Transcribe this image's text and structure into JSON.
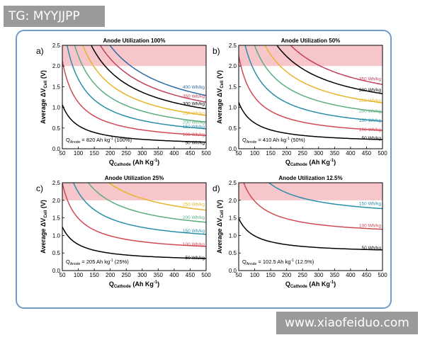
{
  "watermark_top": "TG: MYYJJPP",
  "watermark_bottom": "www.xiaofeiduo.com",
  "colors": {
    "band": "#f7c6cb",
    "50": "#000000",
    "100": "#d04a55",
    "150": "#2a8fa8",
    "200": "#5bae7e",
    "250": "#e7b52a",
    "300": "#000000",
    "350": "#c0415b",
    "400": "#2d6ca3"
  },
  "chart_data": [
    {
      "type": "line",
      "panel_label": "a)",
      "title": "Anode Utilization 100%",
      "xlabel": "Q",
      "xlabel_sub": "Cathode",
      "xlabel_unit": "(Ah Kg",
      "xlabel_sup": "-1",
      "xlabel_end": ")",
      "ylabel": "Average ΔV",
      "ylabel_sub": "Cell",
      "ylabel_unit": "(V)",
      "xlim": [
        50,
        500
      ],
      "ylim": [
        0,
        2.5
      ],
      "xticks": [
        "50",
        "100",
        "150",
        "200",
        "250",
        "300",
        "350",
        "400",
        "450",
        "500"
      ],
      "yticks": [
        "0.0",
        "0.5",
        "1.0",
        "1.5",
        "2.0",
        "2.5"
      ],
      "band": [
        2.0,
        2.5
      ],
      "anode_capacity": 820,
      "annotation": {
        "prefix": "Q",
        "sub": "Anode",
        "text": " = 820 Ah kg",
        "sup": "-1",
        "suffix": " (100%)"
      },
      "series": [
        {
          "name": "50 Wh/kg",
          "energy": 50,
          "label": "50 Wh/kg"
        },
        {
          "name": "100 Wh/kg",
          "energy": 100,
          "label": "100 Wh/kg"
        },
        {
          "name": "150 Wh/kg",
          "energy": 150,
          "label": "150 Wh/kg"
        },
        {
          "name": "200 Wh/kg",
          "energy": 200,
          "label": "200 Wh/kg"
        },
        {
          "name": "250 Wh/kg",
          "energy": 250,
          "label": "250 Wh/kg"
        },
        {
          "name": "300 Wh/kg",
          "energy": 300,
          "label": "300 Wh/kg"
        },
        {
          "name": "350 Wh/kg",
          "energy": 350,
          "label": "350 Wh/kg"
        },
        {
          "name": "400 Wh/kg",
          "energy": 400,
          "label": "400 Wh/kg"
        }
      ]
    },
    {
      "type": "line",
      "panel_label": "b)",
      "title": "Anode Utilization 50%",
      "xlabel": "Q",
      "xlabel_sub": "Cathode",
      "xlabel_unit": "(Ah Kg",
      "xlabel_sup": "-1",
      "xlabel_end": ")",
      "ylabel": "Average ΔV",
      "ylabel_sub": "Cell",
      "ylabel_unit": "(V)",
      "xlim": [
        50,
        500
      ],
      "ylim": [
        0,
        2.5
      ],
      "xticks": [
        "50",
        "100",
        "150",
        "200",
        "250",
        "300",
        "350",
        "400",
        "450",
        "500"
      ],
      "yticks": [
        "0.0",
        "0.5",
        "1.0",
        "1.5",
        "2.0",
        "2.5"
      ],
      "band": [
        2.0,
        2.5
      ],
      "anode_capacity": 410,
      "annotation": {
        "prefix": "Q",
        "sub": "Anode",
        "text": " = 410 Ah kg",
        "sup": "-1",
        "suffix": " (50%)"
      },
      "series": [
        {
          "name": "50 Wh/kg",
          "energy": 50,
          "label": "50 Wh/kg"
        },
        {
          "name": "100 Wh/kg",
          "energy": 100,
          "label": "100 Wh/kg"
        },
        {
          "name": "150 Wh/kg",
          "energy": 150,
          "label": "150 Wh/kg"
        },
        {
          "name": "200 Wh/kg",
          "energy": 200,
          "label": "200 Wh/kg"
        },
        {
          "name": "250 Wh/kg",
          "energy": 250,
          "label": "250 Wh/kg"
        },
        {
          "name": "300 Wh/kg",
          "energy": 300,
          "label": "300 Wh/kg"
        },
        {
          "name": "350 Wh/kg",
          "energy": 350,
          "label": "350 Wh/kg"
        }
      ]
    },
    {
      "type": "line",
      "panel_label": "c)",
      "title": "Anode Utilization 25%",
      "xlabel": "Q",
      "xlabel_sub": "Cathode",
      "xlabel_unit": "(Ah Kg",
      "xlabel_sup": "-1",
      "xlabel_end": ")",
      "ylabel": "Average ΔV",
      "ylabel_sub": "Cell",
      "ylabel_unit": "(V)",
      "xlim": [
        50,
        500
      ],
      "ylim": [
        0,
        2.5
      ],
      "xticks": [
        "50",
        "100",
        "150",
        "200",
        "250",
        "300",
        "350",
        "400",
        "450",
        "500"
      ],
      "yticks": [
        "0.0",
        "0.5",
        "1.0",
        "1.5",
        "2.0",
        "2.5"
      ],
      "band": [
        2.0,
        2.5
      ],
      "anode_capacity": 205,
      "annotation": {
        "prefix": "Q",
        "sub": "Anode",
        "text": " = 205 Ah kg",
        "sup": "-1",
        "suffix": " (25%)"
      },
      "series": [
        {
          "name": "50 Wh/kg",
          "energy": 50,
          "label": "50 Wh/kg"
        },
        {
          "name": "100 Wh/kg",
          "energy": 100,
          "label": "100 Wh/kg"
        },
        {
          "name": "150 Wh/kg",
          "energy": 150,
          "label": "150 Wh/kg"
        },
        {
          "name": "200 Wh/kg",
          "energy": 200,
          "label": "200 Wh/kg"
        },
        {
          "name": "250 Wh/kg",
          "energy": 250,
          "label": "250 Wh/kg"
        }
      ]
    },
    {
      "type": "line",
      "panel_label": "d)",
      "title": "Anode Utilization 12.5%",
      "xlabel": "Q",
      "xlabel_sub": "Cathode",
      "xlabel_unit": "(Ah Kg",
      "xlabel_sup": "-1",
      "xlabel_end": ")",
      "ylabel": "Average ΔV",
      "ylabel_sub": "Cell",
      "ylabel_unit": "(V)",
      "xlim": [
        50,
        500
      ],
      "ylim": [
        0,
        2.5
      ],
      "xticks": [
        "50",
        "100",
        "150",
        "200",
        "250",
        "300",
        "350",
        "400",
        "450",
        "500"
      ],
      "yticks": [
        "0.0",
        "0.5",
        "1.0",
        "1.5",
        "2.0",
        "2.5"
      ],
      "band": [
        2.0,
        2.5
      ],
      "anode_capacity": 102.5,
      "annotation": {
        "prefix": "Q",
        "sub": "Anode",
        "text": " = 102.5 Ah kg",
        "sup": "-1",
        "suffix": " (12.5%)"
      },
      "series": [
        {
          "name": "50 Wh/kg",
          "energy": 50,
          "label": "50 Wh/kg"
        },
        {
          "name": "100 Wh/kg",
          "energy": 100,
          "label": "100 Wh/kg"
        },
        {
          "name": "150 Wh/kg",
          "energy": 150,
          "label": "150 Wh/kg"
        }
      ]
    }
  ]
}
